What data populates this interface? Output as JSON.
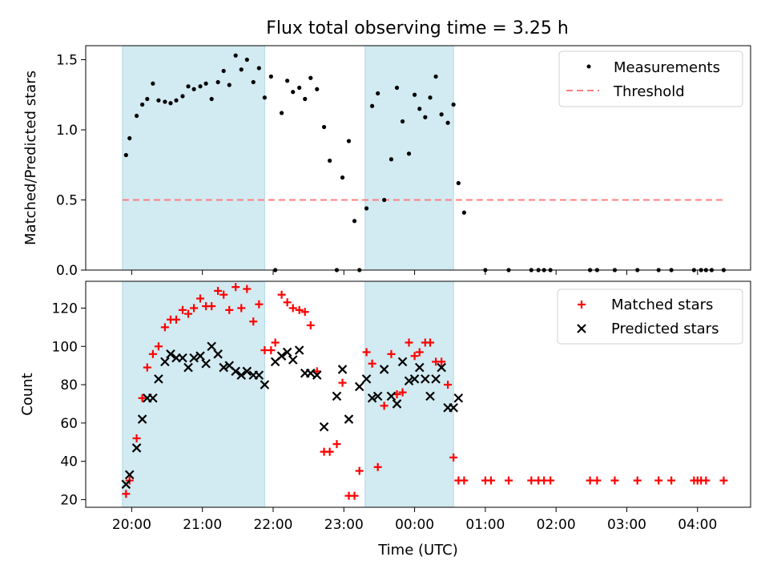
{
  "figure": {
    "title": "Flux total observing time = 3.25 h"
  },
  "colors": {
    "shade": "#add8e6",
    "threshold": "#ff7f7f",
    "matched": "#ff0000",
    "predicted": "#000000",
    "measure": "#000000"
  },
  "chart_data": [
    {
      "type": "scatter",
      "panel": "top",
      "title": "Flux total observing time = 3.25 h",
      "ylabel": "Matched/Predicted stars",
      "xlabel": "",
      "ylim": [
        0,
        1.6
      ],
      "yticks": [
        "0.0",
        "0.5",
        "1.0",
        "1.5"
      ],
      "ytick_values": [
        0,
        0.5,
        1.0,
        1.5
      ],
      "legend": {
        "placement": "top-right",
        "entries": [
          "Measurements",
          "Threshold"
        ]
      },
      "shaded_intervals_hours": [
        [
          19.87,
          21.88
        ],
        [
          23.3,
          24.55
        ]
      ],
      "threshold": {
        "y": 0.5,
        "x_range_hours": [
          19.87,
          28.37
        ]
      },
      "series": [
        {
          "name": "Measurements",
          "marker": "dot",
          "x_hours": [
            19.92,
            19.97,
            20.07,
            20.15,
            20.22,
            20.3,
            20.38,
            20.47,
            20.55,
            20.63,
            20.72,
            20.8,
            20.88,
            20.97,
            21.05,
            21.13,
            21.22,
            21.3,
            21.38,
            21.47,
            21.55,
            21.63,
            21.72,
            21.8,
            21.88,
            21.97,
            22.03,
            22.12,
            22.2,
            22.28,
            22.37,
            22.45,
            22.53,
            22.62,
            22.72,
            22.8,
            22.9,
            22.98,
            23.07,
            23.15,
            23.22,
            23.32,
            23.4,
            23.48,
            23.57,
            23.67,
            23.75,
            23.83,
            23.92,
            24.0,
            24.07,
            24.15,
            24.22,
            24.3,
            24.38,
            24.47,
            24.55,
            24.62,
            24.7,
            25.0,
            25.33,
            25.65,
            25.75,
            25.83,
            25.92,
            26.48,
            26.58,
            26.83,
            27.15,
            27.45,
            27.63,
            27.95,
            28.05,
            28.12,
            28.2,
            28.37
          ],
          "y": [
            0.82,
            0.94,
            1.1,
            1.18,
            1.22,
            1.33,
            1.21,
            1.2,
            1.19,
            1.21,
            1.24,
            1.31,
            1.29,
            1.31,
            1.33,
            1.22,
            1.34,
            1.42,
            1.32,
            1.53,
            1.43,
            1.5,
            1.34,
            1.44,
            1.23,
            1.38,
            0.0,
            1.12,
            1.35,
            1.27,
            1.3,
            1.22,
            1.37,
            1.29,
            1.02,
            0.78,
            0.0,
            0.66,
            0.92,
            0.35,
            0.0,
            0.44,
            1.17,
            1.26,
            0.5,
            0.79,
            1.3,
            1.06,
            0.83,
            1.25,
            1.15,
            1.09,
            1.23,
            1.38,
            1.11,
            1.05,
            1.18,
            0.62,
            0.41,
            0.0,
            0.0,
            0.0,
            0.0,
            0.0,
            0.0,
            0.0,
            0.0,
            0.0,
            0.0,
            0.0,
            0.0,
            0.0,
            0.0,
            0.0,
            0.0,
            0.0
          ]
        }
      ]
    },
    {
      "type": "scatter",
      "panel": "bottom",
      "ylabel": "Count",
      "xlabel": "Time (UTC)",
      "ylim": [
        16,
        134
      ],
      "yticks": [
        "20",
        "40",
        "60",
        "80",
        "100",
        "120"
      ],
      "ytick_values": [
        20,
        40,
        60,
        80,
        100,
        120
      ],
      "xlim_hours": [
        19.35,
        28.75
      ],
      "xtick_values_hours": [
        20,
        21,
        22,
        23,
        24,
        25,
        26,
        27,
        28
      ],
      "xticks": [
        "20:00",
        "21:00",
        "22:00",
        "23:00",
        "00:00",
        "01:00",
        "02:00",
        "03:00",
        "04:00"
      ],
      "legend": {
        "placement": "top-right",
        "entries": [
          "Matched stars",
          "Predicted stars"
        ]
      },
      "shaded_intervals_hours": [
        [
          19.87,
          21.88
        ],
        [
          23.3,
          24.55
        ]
      ],
      "series": [
        {
          "name": "Matched stars",
          "marker": "plus",
          "points": [
            [
              19.92,
              23
            ],
            [
              19.97,
              30
            ],
            [
              20.07,
              52
            ],
            [
              20.15,
              73
            ],
            [
              20.22,
              89
            ],
            [
              20.3,
              96
            ],
            [
              20.38,
              100
            ],
            [
              20.47,
              110
            ],
            [
              20.55,
              114
            ],
            [
              20.63,
              114
            ],
            [
              20.72,
              119
            ],
            [
              20.8,
              117
            ],
            [
              20.88,
              120
            ],
            [
              20.97,
              125
            ],
            [
              21.05,
              121
            ],
            [
              21.13,
              121
            ],
            [
              21.22,
              129
            ],
            [
              21.3,
              127
            ],
            [
              21.38,
              119
            ],
            [
              21.47,
              131
            ],
            [
              21.55,
              120
            ],
            [
              21.63,
              130
            ],
            [
              21.72,
              113
            ],
            [
              21.8,
              122
            ],
            [
              21.88,
              98
            ],
            [
              21.97,
              98
            ],
            [
              22.03,
              102
            ],
            [
              22.12,
              127
            ],
            [
              22.2,
              123
            ],
            [
              22.28,
              120
            ],
            [
              22.37,
              119
            ],
            [
              22.45,
              118
            ],
            [
              22.53,
              111
            ],
            [
              22.62,
              87
            ],
            [
              22.72,
              45
            ],
            [
              22.8,
              45
            ],
            [
              22.9,
              49
            ],
            [
              22.98,
              81
            ],
            [
              23.07,
              22
            ],
            [
              23.15,
              22
            ],
            [
              23.22,
              35
            ],
            [
              23.32,
              97
            ],
            [
              23.4,
              91
            ],
            [
              23.48,
              37
            ],
            [
              23.57,
              69
            ],
            [
              23.67,
              96
            ],
            [
              23.75,
              75
            ],
            [
              23.83,
              76
            ],
            [
              23.92,
              102
            ],
            [
              24.0,
              95
            ],
            [
              24.07,
              97
            ],
            [
              24.15,
              102
            ],
            [
              24.22,
              102
            ],
            [
              24.3,
              92
            ],
            [
              24.38,
              92
            ],
            [
              24.47,
              80
            ],
            [
              24.55,
              42
            ],
            [
              24.62,
              30
            ],
            [
              24.7,
              30
            ],
            [
              25.0,
              30
            ],
            [
              25.08,
              30
            ],
            [
              25.33,
              30
            ],
            [
              25.65,
              30
            ],
            [
              25.75,
              30
            ],
            [
              25.83,
              30
            ],
            [
              25.92,
              30
            ],
            [
              26.48,
              30
            ],
            [
              26.58,
              30
            ],
            [
              26.83,
              30
            ],
            [
              27.15,
              30
            ],
            [
              27.45,
              30
            ],
            [
              27.63,
              30
            ],
            [
              27.95,
              30
            ],
            [
              28.0,
              30
            ],
            [
              28.05,
              30
            ],
            [
              28.12,
              30
            ],
            [
              28.37,
              30
            ]
          ]
        },
        {
          "name": "Predicted stars",
          "marker": "cross",
          "points": [
            [
              19.92,
              28
            ],
            [
              19.97,
              33
            ],
            [
              20.07,
              47
            ],
            [
              20.15,
              62
            ],
            [
              20.22,
              73
            ],
            [
              20.3,
              73
            ],
            [
              20.38,
              83
            ],
            [
              20.47,
              92
            ],
            [
              20.55,
              96
            ],
            [
              20.63,
              94
            ],
            [
              20.72,
              94
            ],
            [
              20.8,
              89
            ],
            [
              20.88,
              94
            ],
            [
              20.97,
              95
            ],
            [
              21.05,
              91
            ],
            [
              21.13,
              100
            ],
            [
              21.22,
              96
            ],
            [
              21.3,
              89
            ],
            [
              21.38,
              90
            ],
            [
              21.47,
              87
            ],
            [
              21.55,
              85
            ],
            [
              21.63,
              87
            ],
            [
              21.72,
              85
            ],
            [
              21.8,
              85
            ],
            [
              21.88,
              80
            ],
            [
              22.03,
              92
            ],
            [
              22.12,
              95
            ],
            [
              22.2,
              97
            ],
            [
              22.28,
              93
            ],
            [
              22.37,
              98
            ],
            [
              22.45,
              86
            ],
            [
              22.53,
              86
            ],
            [
              22.62,
              85
            ],
            [
              22.72,
              58
            ],
            [
              22.9,
              74
            ],
            [
              22.98,
              88
            ],
            [
              23.07,
              62
            ],
            [
              23.22,
              79
            ],
            [
              23.32,
              83
            ],
            [
              23.4,
              73
            ],
            [
              23.48,
              74
            ],
            [
              23.57,
              88
            ],
            [
              23.67,
              74
            ],
            [
              23.75,
              70
            ],
            [
              23.83,
              92
            ],
            [
              23.92,
              82
            ],
            [
              24.0,
              83
            ],
            [
              24.07,
              89
            ],
            [
              24.15,
              83
            ],
            [
              24.22,
              74
            ],
            [
              24.3,
              83
            ],
            [
              24.38,
              89
            ],
            [
              24.47,
              68
            ],
            [
              24.55,
              68
            ],
            [
              24.62,
              73
            ]
          ]
        }
      ]
    }
  ]
}
